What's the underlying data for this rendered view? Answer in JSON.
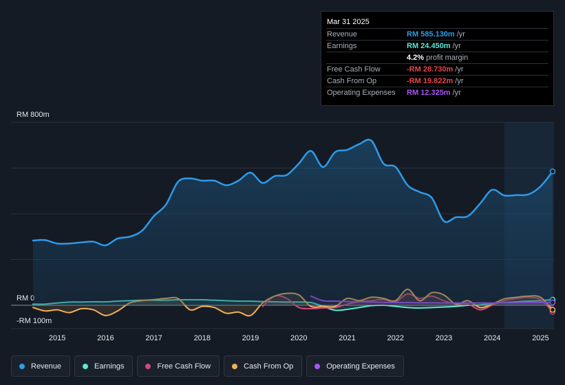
{
  "tooltip": {
    "date": "Mar 31 2025",
    "rows": [
      {
        "label": "Revenue",
        "value": "RM 585.130m",
        "unit": "/yr",
        "color": "#2e9bea"
      },
      {
        "label": "Earnings",
        "value": "RM 24.450m",
        "unit": "/yr",
        "color": "#5ce8d6"
      },
      {
        "label": "",
        "value": "4.2%",
        "unit": "profit margin",
        "color": "#ffffff"
      },
      {
        "label": "Free Cash Flow",
        "value": "-RM 28.730m",
        "unit": "/yr",
        "color": "#e8464c"
      },
      {
        "label": "Cash From Op",
        "value": "-RM 19.822m",
        "unit": "/yr",
        "color": "#e8464c"
      },
      {
        "label": "Operating Expenses",
        "value": "RM 12.325m",
        "unit": "/yr",
        "color": "#a855f7"
      }
    ]
  },
  "legend": [
    {
      "label": "Revenue",
      "color": "#2e9bea"
    },
    {
      "label": "Earnings",
      "color": "#5ce8d6"
    },
    {
      "label": "Free Cash Flow",
      "color": "#d04b7a"
    },
    {
      "label": "Cash From Op",
      "color": "#f0b05a"
    },
    {
      "label": "Operating Expenses",
      "color": "#a855f7"
    }
  ],
  "chart_data": {
    "type": "line",
    "title": "",
    "ylabel_top": "RM 800m",
    "ylabel_zero": "RM 0",
    "ylabel_bottom": "-RM 100m",
    "ylim": [
      -100,
      800
    ],
    "xlim": [
      2014.5,
      2025.25
    ],
    "x_ticks": [
      "2015",
      "2016",
      "2017",
      "2018",
      "2019",
      "2020",
      "2021",
      "2022",
      "2023",
      "2024",
      "2025"
    ],
    "x_tick_values": [
      2015,
      2016,
      2017,
      2018,
      2019,
      2020,
      2021,
      2022,
      2023,
      2024,
      2025
    ],
    "forecast_start": 2024.25,
    "series": [
      {
        "name": "Revenue",
        "color": "#2e9bea",
        "area": true,
        "points": [
          [
            2014.5,
            283
          ],
          [
            2014.75,
            285
          ],
          [
            2015.0,
            270
          ],
          [
            2015.25,
            270
          ],
          [
            2015.5,
            275
          ],
          [
            2015.75,
            278
          ],
          [
            2016.0,
            262
          ],
          [
            2016.25,
            292
          ],
          [
            2016.5,
            300
          ],
          [
            2016.75,
            325
          ],
          [
            2017.0,
            390
          ],
          [
            2017.25,
            440
          ],
          [
            2017.5,
            540
          ],
          [
            2017.75,
            555
          ],
          [
            2018.0,
            545
          ],
          [
            2018.25,
            545
          ],
          [
            2018.5,
            525
          ],
          [
            2018.75,
            545
          ],
          [
            2019.0,
            580
          ],
          [
            2019.25,
            535
          ],
          [
            2019.5,
            565
          ],
          [
            2019.75,
            570
          ],
          [
            2020.0,
            620
          ],
          [
            2020.25,
            675
          ],
          [
            2020.5,
            605
          ],
          [
            2020.75,
            670
          ],
          [
            2021.0,
            680
          ],
          [
            2021.25,
            705
          ],
          [
            2021.5,
            720
          ],
          [
            2021.75,
            620
          ],
          [
            2022.0,
            605
          ],
          [
            2022.25,
            525
          ],
          [
            2022.5,
            495
          ],
          [
            2022.75,
            470
          ],
          [
            2023.0,
            368
          ],
          [
            2023.25,
            385
          ],
          [
            2023.5,
            390
          ],
          [
            2023.75,
            445
          ],
          [
            2024.0,
            505
          ],
          [
            2024.25,
            480
          ],
          [
            2024.5,
            482
          ],
          [
            2024.75,
            485
          ],
          [
            2025.0,
            520
          ],
          [
            2025.25,
            585
          ]
        ]
      },
      {
        "name": "Earnings",
        "color": "#5ce8d6",
        "area": false,
        "points": [
          [
            2014.5,
            5
          ],
          [
            2014.75,
            5
          ],
          [
            2015.0,
            10
          ],
          [
            2015.25,
            14
          ],
          [
            2015.5,
            14
          ],
          [
            2015.75,
            15
          ],
          [
            2016.0,
            15
          ],
          [
            2016.25,
            18
          ],
          [
            2016.5,
            20
          ],
          [
            2016.75,
            22
          ],
          [
            2017.0,
            22
          ],
          [
            2017.25,
            22
          ],
          [
            2017.5,
            24
          ],
          [
            2017.75,
            24
          ],
          [
            2018.0,
            24
          ],
          [
            2018.25,
            22
          ],
          [
            2018.5,
            20
          ],
          [
            2018.75,
            18
          ],
          [
            2019.0,
            18
          ],
          [
            2019.25,
            16
          ],
          [
            2019.5,
            15
          ],
          [
            2019.75,
            14
          ],
          [
            2020.0,
            14
          ],
          [
            2020.25,
            12
          ],
          [
            2020.5,
            -5
          ],
          [
            2020.75,
            -22
          ],
          [
            2021.0,
            -18
          ],
          [
            2021.25,
            -10
          ],
          [
            2021.5,
            -2
          ],
          [
            2021.75,
            0
          ],
          [
            2022.0,
            -5
          ],
          [
            2022.25,
            -10
          ],
          [
            2022.5,
            -12
          ],
          [
            2022.75,
            -10
          ],
          [
            2023.0,
            -8
          ],
          [
            2023.25,
            -5
          ],
          [
            2023.5,
            0
          ],
          [
            2023.75,
            2
          ],
          [
            2024.0,
            8
          ],
          [
            2024.25,
            12
          ],
          [
            2024.5,
            15
          ],
          [
            2024.75,
            18
          ],
          [
            2025.0,
            20
          ],
          [
            2025.25,
            24.45
          ]
        ]
      },
      {
        "name": "Free Cash Flow",
        "color": "#d04b7a",
        "area": false,
        "points": [
          [
            2019.25,
            -5
          ],
          [
            2019.5,
            40
          ],
          [
            2019.75,
            30
          ],
          [
            2020.0,
            -10
          ],
          [
            2020.25,
            -15
          ],
          [
            2020.5,
            -12
          ],
          [
            2020.75,
            -10
          ],
          [
            2021.0,
            5
          ],
          [
            2021.25,
            15
          ],
          [
            2021.5,
            20
          ],
          [
            2021.75,
            25
          ],
          [
            2022.0,
            15
          ],
          [
            2022.25,
            50
          ],
          [
            2022.5,
            30
          ],
          [
            2022.75,
            40
          ],
          [
            2023.0,
            20
          ],
          [
            2023.25,
            5
          ],
          [
            2023.5,
            5
          ],
          [
            2023.75,
            -20
          ],
          [
            2024.0,
            0
          ],
          [
            2024.25,
            20
          ],
          [
            2024.5,
            30
          ],
          [
            2024.75,
            35
          ],
          [
            2025.0,
            25
          ],
          [
            2025.25,
            -28.73
          ]
        ]
      },
      {
        "name": "Cash From Op",
        "color": "#f0b05a",
        "area": false,
        "points": [
          [
            2014.5,
            -10
          ],
          [
            2014.75,
            -25
          ],
          [
            2015.0,
            -20
          ],
          [
            2015.25,
            -32
          ],
          [
            2015.5,
            -15
          ],
          [
            2015.75,
            -20
          ],
          [
            2016.0,
            -45
          ],
          [
            2016.25,
            -25
          ],
          [
            2016.5,
            10
          ],
          [
            2016.75,
            20
          ],
          [
            2017.0,
            25
          ],
          [
            2017.25,
            30
          ],
          [
            2017.5,
            30
          ],
          [
            2017.75,
            -20
          ],
          [
            2018.0,
            -5
          ],
          [
            2018.25,
            -10
          ],
          [
            2018.5,
            -35
          ],
          [
            2018.75,
            -30
          ],
          [
            2019.0,
            -45
          ],
          [
            2019.25,
            10
          ],
          [
            2019.5,
            40
          ],
          [
            2019.75,
            52
          ],
          [
            2020.0,
            45
          ],
          [
            2020.25,
            -5
          ],
          [
            2020.5,
            -5
          ],
          [
            2020.75,
            -5
          ],
          [
            2021.0,
            30
          ],
          [
            2021.25,
            20
          ],
          [
            2021.5,
            35
          ],
          [
            2021.75,
            30
          ],
          [
            2022.0,
            20
          ],
          [
            2022.25,
            70
          ],
          [
            2022.5,
            20
          ],
          [
            2022.75,
            55
          ],
          [
            2023.0,
            45
          ],
          [
            2023.25,
            5
          ],
          [
            2023.5,
            20
          ],
          [
            2023.75,
            -10
          ],
          [
            2024.0,
            5
          ],
          [
            2024.25,
            28
          ],
          [
            2024.5,
            35
          ],
          [
            2024.75,
            40
          ],
          [
            2025.0,
            35
          ],
          [
            2025.25,
            -19.82
          ]
        ]
      },
      {
        "name": "Operating Expenses",
        "color": "#a855f7",
        "area": false,
        "points": [
          [
            2020.25,
            40
          ],
          [
            2020.5,
            20
          ],
          [
            2020.75,
            18
          ],
          [
            2021.0,
            16
          ],
          [
            2021.25,
            15
          ],
          [
            2021.5,
            14
          ],
          [
            2021.75,
            13
          ],
          [
            2022.0,
            12
          ],
          [
            2022.25,
            12
          ],
          [
            2022.5,
            11
          ],
          [
            2022.75,
            11
          ],
          [
            2023.0,
            10
          ],
          [
            2023.25,
            10
          ],
          [
            2023.5,
            10
          ],
          [
            2023.75,
            10
          ],
          [
            2024.0,
            10
          ],
          [
            2024.25,
            11
          ],
          [
            2024.5,
            11
          ],
          [
            2024.75,
            12
          ],
          [
            2025.0,
            12
          ],
          [
            2025.25,
            12.325
          ]
        ]
      }
    ]
  }
}
